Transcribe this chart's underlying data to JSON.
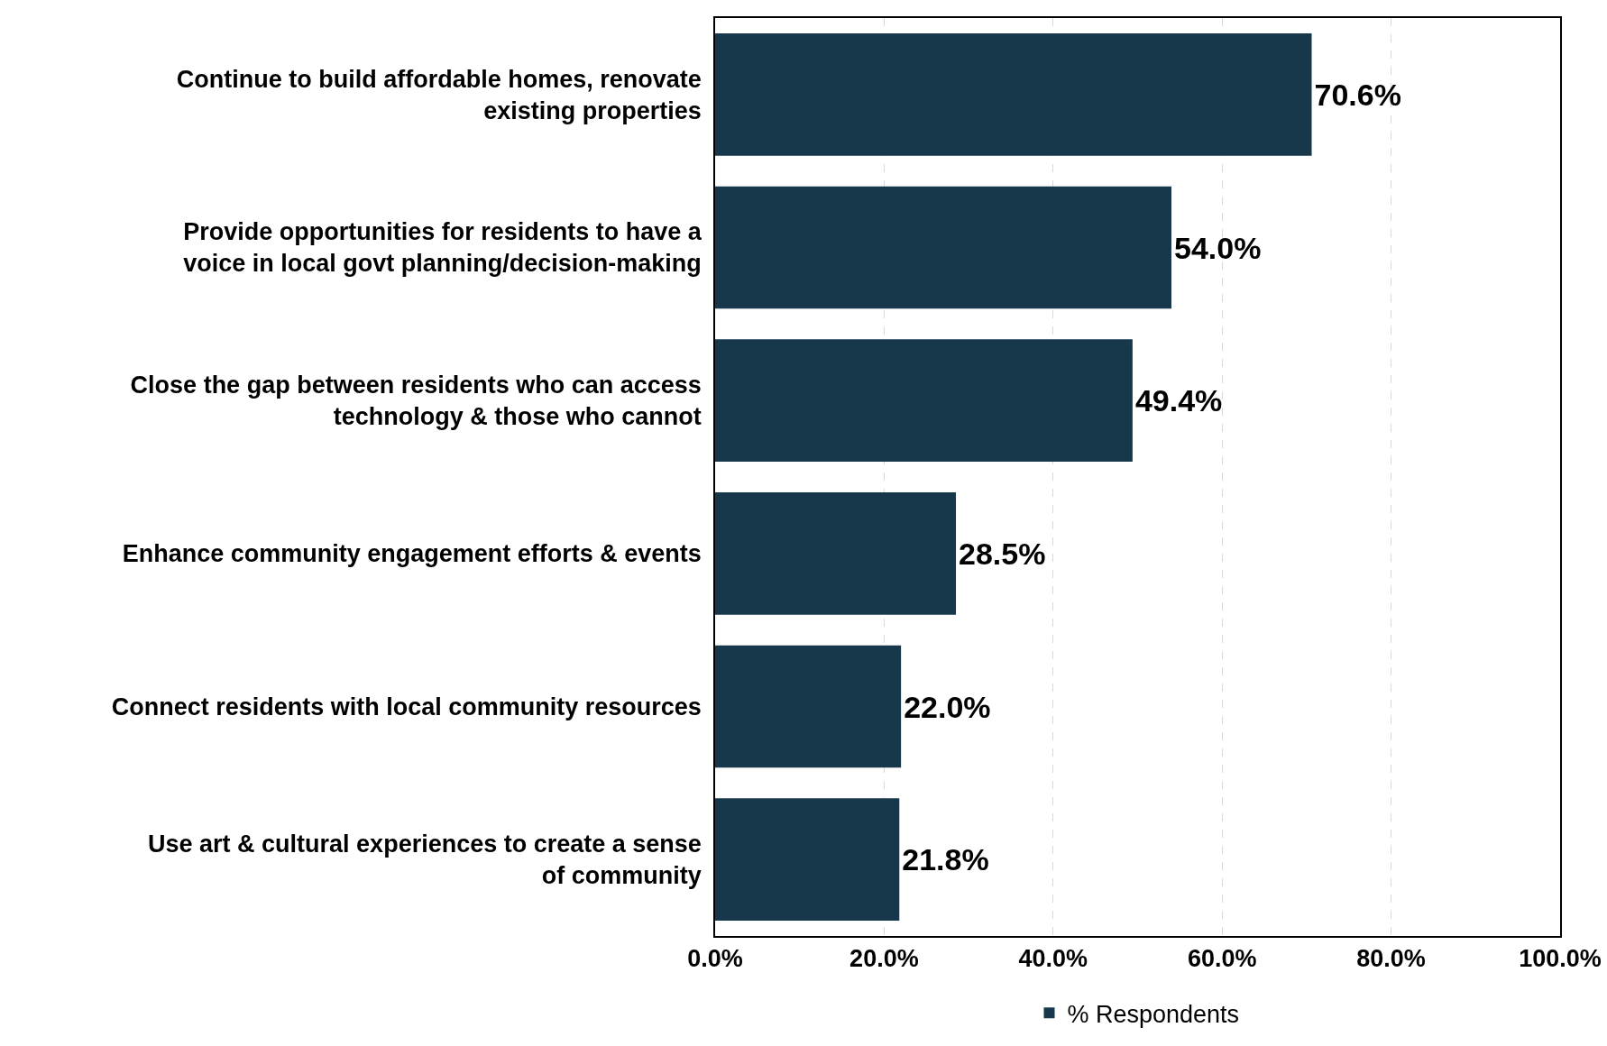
{
  "chart_data": {
    "type": "bar",
    "orientation": "horizontal",
    "categories": [
      "Continue to build affordable homes, renovate existing properties",
      "Provide opportunities for residents to have a voice in local govt planning/decision-making",
      "Close the gap between residents who can access technology & those who cannot",
      "Enhance community engagement efforts & events",
      "Connect residents with local community resources",
      "Use art & cultural experiences to create a sense of community"
    ],
    "series": [
      {
        "name": "% Respondents",
        "color": "#17374b",
        "values": [
          70.6,
          54.0,
          49.4,
          28.5,
          22.0,
          21.8
        ],
        "value_labels": [
          "70.6%",
          "54.0%",
          "49.4%",
          "28.5%",
          "22.0%",
          "21.8%"
        ]
      }
    ],
    "xlim": [
      0,
      100
    ],
    "xticks": [
      {
        "value": 0,
        "label": "0.0%"
      },
      {
        "value": 20,
        "label": "20.0%"
      },
      {
        "value": 40,
        "label": "40.0%"
      },
      {
        "value": 60,
        "label": "60.0%"
      },
      {
        "value": 80,
        "label": "80.0%"
      },
      {
        "value": 100,
        "label": "100.0%"
      }
    ],
    "grid": "x",
    "legend": "bottom"
  }
}
